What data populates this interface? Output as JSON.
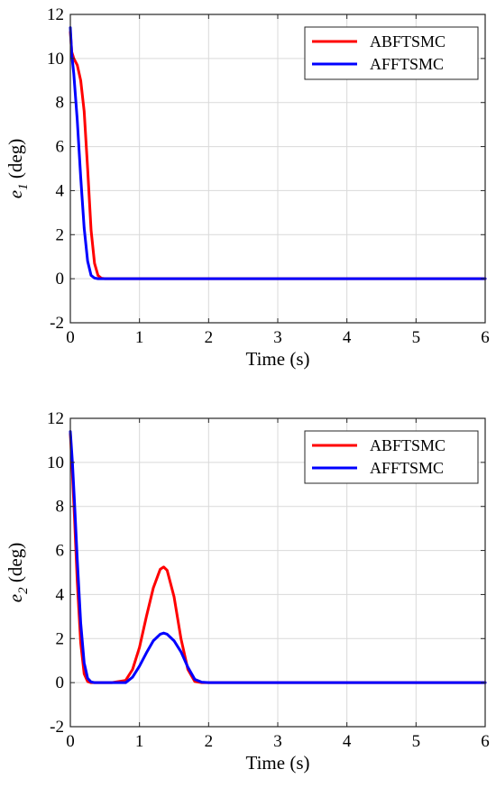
{
  "chart_data": [
    {
      "type": "line",
      "xlabel": "Time (s)",
      "ylabel": {
        "main": "e",
        "sub": "1",
        "unit": " (deg)"
      },
      "xlim": [
        0,
        6
      ],
      "ylim": [
        -2,
        12
      ],
      "xticks": [
        "0",
        "1",
        "2",
        "3",
        "4",
        "5",
        "6"
      ],
      "yticks": [
        "-2",
        "0",
        "2",
        "4",
        "6",
        "8",
        "10",
        "12"
      ],
      "grid": true,
      "legend_position": "top-right",
      "series": [
        {
          "name": "ABFTSMC",
          "color": "#ff0000",
          "x": [
            0,
            0.02,
            0.05,
            0.1,
            0.15,
            0.2,
            0.25,
            0.3,
            0.35,
            0.4,
            0.45,
            0.5,
            0.6,
            1,
            2,
            3,
            4,
            5,
            6
          ],
          "y": [
            11.2,
            10.3,
            10.0,
            9.7,
            9.0,
            7.6,
            5.0,
            2.2,
            0.7,
            0.15,
            0.02,
            0,
            0,
            0,
            0,
            0,
            0,
            0,
            0
          ]
        },
        {
          "name": "AFFTSMC",
          "color": "#0000ff",
          "x": [
            0,
            0.02,
            0.05,
            0.1,
            0.15,
            0.2,
            0.25,
            0.3,
            0.35,
            0.4,
            0.5,
            1,
            2,
            3,
            4,
            5,
            6
          ],
          "y": [
            11.4,
            10.2,
            9.3,
            7.2,
            4.6,
            2.3,
            0.8,
            0.15,
            0.03,
            0,
            0,
            0,
            0,
            0,
            0,
            0,
            0
          ]
        }
      ]
    },
    {
      "type": "line",
      "xlabel": "Time (s)",
      "ylabel": {
        "main": "e",
        "sub": "2",
        "unit": " (deg)"
      },
      "xlim": [
        0,
        6
      ],
      "ylim": [
        -2,
        12
      ],
      "xticks": [
        "0",
        "1",
        "2",
        "3",
        "4",
        "5",
        "6"
      ],
      "yticks": [
        "-2",
        "0",
        "2",
        "4",
        "6",
        "8",
        "10",
        "12"
      ],
      "grid": true,
      "legend_position": "top-right",
      "series": [
        {
          "name": "ABFTSMC",
          "color": "#ff0000",
          "x": [
            0,
            0.03,
            0.06,
            0.1,
            0.15,
            0.2,
            0.25,
            0.3,
            0.4,
            0.6,
            0.8,
            0.9,
            1.0,
            1.1,
            1.2,
            1.3,
            1.35,
            1.4,
            1.5,
            1.6,
            1.7,
            1.8,
            1.9,
            2.0,
            3,
            4,
            5,
            6
          ],
          "y": [
            11.3,
            9.5,
            7.5,
            4.6,
            1.8,
            0.4,
            0.05,
            0,
            0,
            0,
            0.1,
            0.6,
            1.6,
            3.0,
            4.3,
            5.15,
            5.25,
            5.1,
            3.9,
            2.0,
            0.6,
            0.05,
            0,
            0,
            0,
            0,
            0,
            0
          ]
        },
        {
          "name": "AFFTSMC",
          "color": "#0000ff",
          "x": [
            0,
            0.03,
            0.06,
            0.1,
            0.15,
            0.2,
            0.25,
            0.3,
            0.35,
            0.4,
            0.6,
            0.8,
            0.9,
            1.0,
            1.1,
            1.2,
            1.3,
            1.35,
            1.4,
            1.5,
            1.6,
            1.7,
            1.8,
            1.9,
            2.0,
            3,
            4,
            5,
            6
          ],
          "y": [
            11.4,
            10.0,
            8.2,
            5.6,
            2.7,
            0.9,
            0.2,
            0.03,
            0,
            0,
            0,
            0,
            0.25,
            0.75,
            1.35,
            1.9,
            2.2,
            2.25,
            2.2,
            1.9,
            1.4,
            0.7,
            0.15,
            0.02,
            0,
            0,
            0,
            0,
            0
          ]
        }
      ]
    }
  ]
}
